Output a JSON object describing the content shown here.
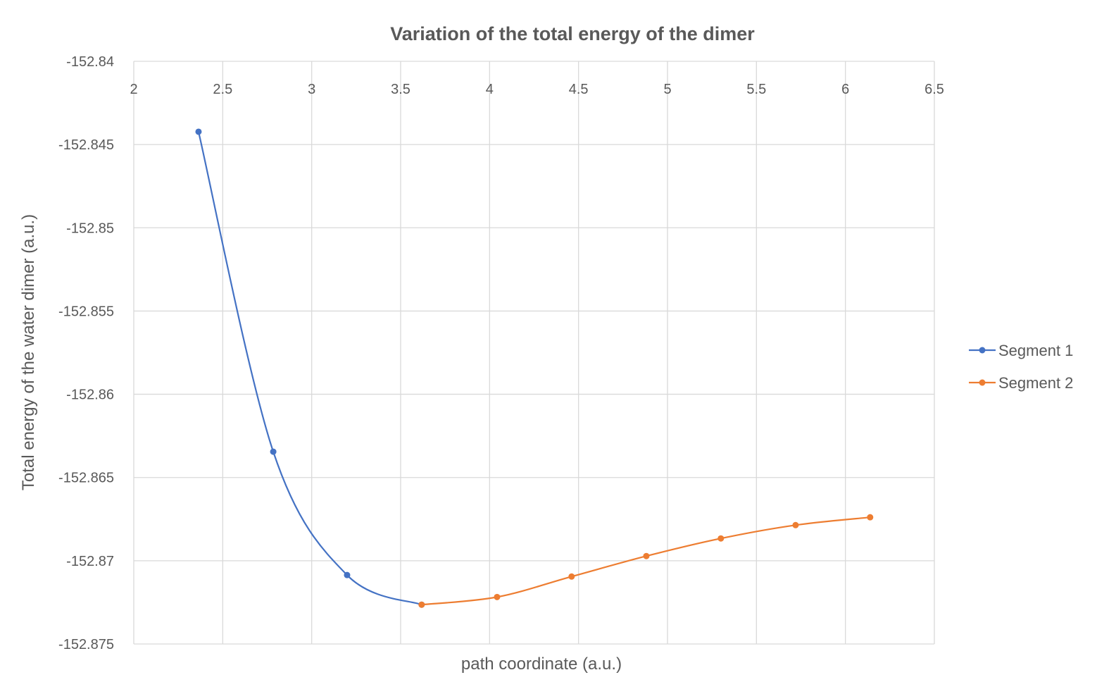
{
  "chart_data": {
    "type": "line",
    "title": "Variation of the total energy of the dimer",
    "xlabel": "path coordinate (a.u.)",
    "ylabel": "Total energy of the water dimer (a.u.)",
    "xlim": [
      2,
      6.5
    ],
    "ylim": [
      -152.875,
      -152.84
    ],
    "xticks": [
      2,
      2.5,
      3,
      3.5,
      4,
      4.5,
      5,
      5.5,
      6,
      6.5
    ],
    "yticks": [
      -152.84,
      -152.845,
      -152.85,
      -152.855,
      -152.86,
      -152.865,
      -152.87,
      -152.875
    ],
    "xtick_labels": [
      "2",
      "2.5",
      "3",
      "3.5",
      "4",
      "4.5",
      "5",
      "5.5",
      "6",
      "6.5"
    ],
    "ytick_labels": [
      "-152.84",
      "-152.845",
      "-152.85",
      "-152.855",
      "-152.86",
      "-152.865",
      "-152.87",
      "-152.875"
    ],
    "x_axis_position": "top",
    "grid": true,
    "smoothed": true,
    "legend_position": "right",
    "series": [
      {
        "name": "Segment 1",
        "color": "#4472C4",
        "x": [
          2.364,
          2.784,
          3.199,
          3.618
        ],
        "y": [
          -152.84423,
          -152.86345,
          -152.87086,
          -152.87264
        ]
      },
      {
        "name": "Segment 2",
        "color": "#ED7D31",
        "x": [
          3.618,
          4.042,
          4.461,
          4.881,
          5.3,
          5.72,
          6.139
        ],
        "y": [
          -152.87264,
          -152.87218,
          -152.87095,
          -152.86972,
          -152.86866,
          -152.86786,
          -152.86739
        ]
      }
    ]
  }
}
